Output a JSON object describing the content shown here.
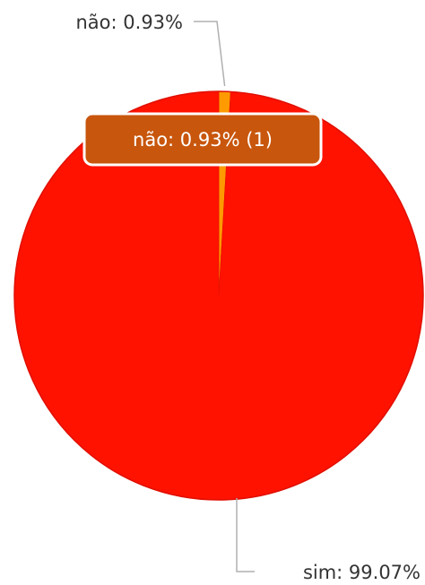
{
  "chart_data": {
    "type": "pie",
    "title": "",
    "slices": [
      {
        "label": "não",
        "value": 1,
        "percent_text": "0.93%",
        "display": "não: 0.93%",
        "color": "#ff9a00"
      },
      {
        "label": "sim",
        "value": 107,
        "percent_text": "99.07%",
        "display": "sim: 99.07%",
        "color": "#ff1200"
      }
    ],
    "tooltip": {
      "text": "não: 0.93% (1)",
      "background": "#c8560c",
      "target_slice": "não"
    },
    "legend": "none",
    "grid": false
  }
}
